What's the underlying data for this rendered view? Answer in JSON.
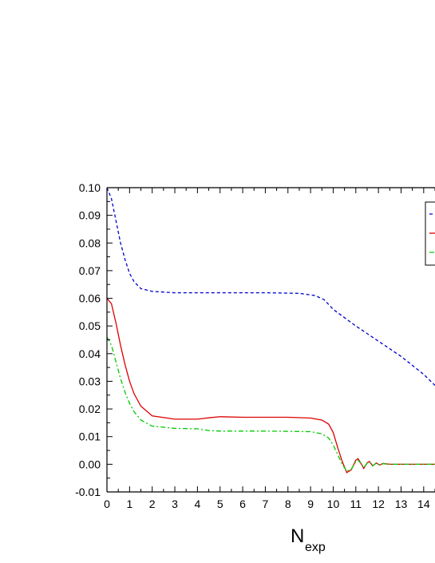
{
  "chart_data": {
    "type": "line",
    "title": "",
    "xlabel": "N",
    "xlabel_subscript": "exp",
    "ylabel": "",
    "xlim": [
      0,
      14.5
    ],
    "ylim": [
      -0.01,
      0.1
    ],
    "x_ticks": [
      0,
      1,
      2,
      3,
      4,
      5,
      6,
      7,
      8,
      9,
      10,
      11,
      12,
      13,
      14
    ],
    "y_ticks": [
      -0.01,
      0.0,
      0.01,
      0.02,
      0.03,
      0.04,
      0.05,
      0.06,
      0.07,
      0.08,
      0.09,
      0.1
    ],
    "y_tick_labels": [
      "-0.01",
      "0.00",
      "0.01",
      "0.02",
      "0.03",
      "0.04",
      "0.05",
      "0.06",
      "0.07",
      "0.08",
      "0.09",
      "0.10"
    ],
    "grid": false,
    "legend": "top-right (cropped)",
    "series": [
      {
        "color": "#0000cc",
        "style": "dashed",
        "points": [
          [
            0,
            0.1
          ],
          [
            0.2,
            0.096
          ],
          [
            0.4,
            0.088
          ],
          [
            0.6,
            0.08
          ],
          [
            0.8,
            0.074
          ],
          [
            1.0,
            0.069
          ],
          [
            1.2,
            0.066
          ],
          [
            1.5,
            0.0635
          ],
          [
            2.0,
            0.0625
          ],
          [
            3.0,
            0.062
          ],
          [
            5.0,
            0.062
          ],
          [
            7.0,
            0.062
          ],
          [
            8.5,
            0.0618
          ],
          [
            9.2,
            0.061
          ],
          [
            9.6,
            0.0595
          ],
          [
            10.0,
            0.056
          ],
          [
            11.0,
            0.05
          ],
          [
            12.0,
            0.0445
          ],
          [
            13.0,
            0.039
          ],
          [
            14.0,
            0.0325
          ],
          [
            14.5,
            0.0285
          ]
        ]
      },
      {
        "color": "#dd0000",
        "style": "solid",
        "points": [
          [
            0,
            0.06
          ],
          [
            0.2,
            0.058
          ],
          [
            0.4,
            0.051
          ],
          [
            0.6,
            0.043
          ],
          [
            0.8,
            0.036
          ],
          [
            1.0,
            0.03
          ],
          [
            1.2,
            0.0255
          ],
          [
            1.5,
            0.021
          ],
          [
            2.0,
            0.0175
          ],
          [
            3.0,
            0.0163
          ],
          [
            4.0,
            0.0163
          ],
          [
            4.5,
            0.0168
          ],
          [
            5.0,
            0.0172
          ],
          [
            6.0,
            0.017
          ],
          [
            8.0,
            0.017
          ],
          [
            9.0,
            0.0167
          ],
          [
            9.5,
            0.016
          ],
          [
            9.8,
            0.0145
          ],
          [
            10.0,
            0.0115
          ],
          [
            10.2,
            0.006
          ],
          [
            10.4,
            0.001
          ],
          [
            10.6,
            -0.003
          ],
          [
            10.8,
            -0.002
          ],
          [
            11.0,
            0.0015
          ],
          [
            11.1,
            0.002
          ],
          [
            11.25,
            0.0
          ],
          [
            11.35,
            -0.0015
          ],
          [
            11.5,
            0.0005
          ],
          [
            11.6,
            0.001
          ],
          [
            11.75,
            -0.0006
          ],
          [
            11.9,
            0.0005
          ],
          [
            12.05,
            -0.0003
          ],
          [
            12.2,
            0.0003
          ],
          [
            12.5,
            0.0
          ],
          [
            14.5,
            0.0
          ]
        ]
      },
      {
        "color": "#00cc00",
        "style": "dash-dot",
        "points": [
          [
            0,
            0.046
          ],
          [
            0.2,
            0.043
          ],
          [
            0.4,
            0.037
          ],
          [
            0.6,
            0.031
          ],
          [
            0.8,
            0.026
          ],
          [
            1.0,
            0.022
          ],
          [
            1.2,
            0.019
          ],
          [
            1.5,
            0.016
          ],
          [
            2.0,
            0.0138
          ],
          [
            3.0,
            0.013
          ],
          [
            4.0,
            0.0128
          ],
          [
            4.5,
            0.0122
          ],
          [
            5.0,
            0.012
          ],
          [
            7.0,
            0.012
          ],
          [
            9.0,
            0.0118
          ],
          [
            9.5,
            0.011
          ],
          [
            9.8,
            0.0095
          ],
          [
            10.0,
            0.007
          ],
          [
            10.2,
            0.0035
          ],
          [
            10.4,
            0.0
          ],
          [
            10.6,
            -0.0025
          ],
          [
            10.8,
            -0.0018
          ],
          [
            11.0,
            0.001
          ],
          [
            11.1,
            0.0015
          ],
          [
            11.25,
            0.0
          ],
          [
            11.35,
            -0.0012
          ],
          [
            11.5,
            0.0004
          ],
          [
            11.6,
            0.0008
          ],
          [
            11.75,
            -0.0005
          ],
          [
            11.9,
            0.0004
          ],
          [
            12.05,
            -0.0002
          ],
          [
            12.2,
            0.0002
          ],
          [
            12.5,
            0.0
          ],
          [
            14.5,
            0.0
          ]
        ]
      }
    ]
  }
}
